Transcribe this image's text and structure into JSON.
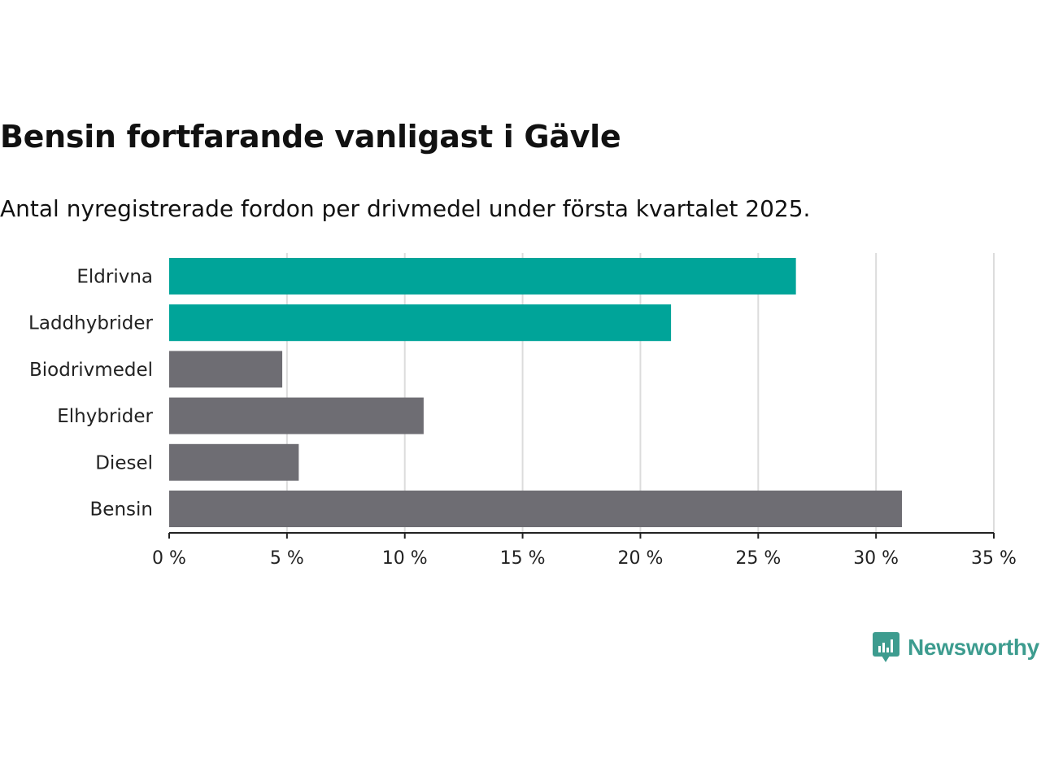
{
  "header": {
    "title": "Bensin fortfarande vanligast i Gävle",
    "subtitle": "Antal nyregistrerade fordon per drivmedel under första kvartalet 2025."
  },
  "chart_data": {
    "type": "bar",
    "orientation": "horizontal",
    "categories": [
      "Eldrivna",
      "Laddhybrider",
      "Biodrivmedel",
      "Elhybrider",
      "Diesel",
      "Bensin"
    ],
    "values": [
      26.6,
      21.3,
      4.8,
      10.8,
      5.5,
      31.1
    ],
    "bar_colors": [
      "#00a499",
      "#00a499",
      "#6e6d73",
      "#6e6d73",
      "#6e6d73",
      "#6e6d73"
    ],
    "xlim": [
      0,
      35
    ],
    "xticks": [
      0,
      5,
      10,
      15,
      20,
      25,
      30,
      35
    ],
    "xtick_labels": [
      "0 %",
      "5 %",
      "10 %",
      "15 %",
      "20 %",
      "25 %",
      "30 %",
      "35 %"
    ],
    "grid": "vertical",
    "xlabel": "",
    "ylabel": ""
  },
  "branding": {
    "logo_text": "Newsworthy",
    "logo_color": "#3d9c8f",
    "logo_icon": "bar-chart-speech-bubble-icon"
  }
}
